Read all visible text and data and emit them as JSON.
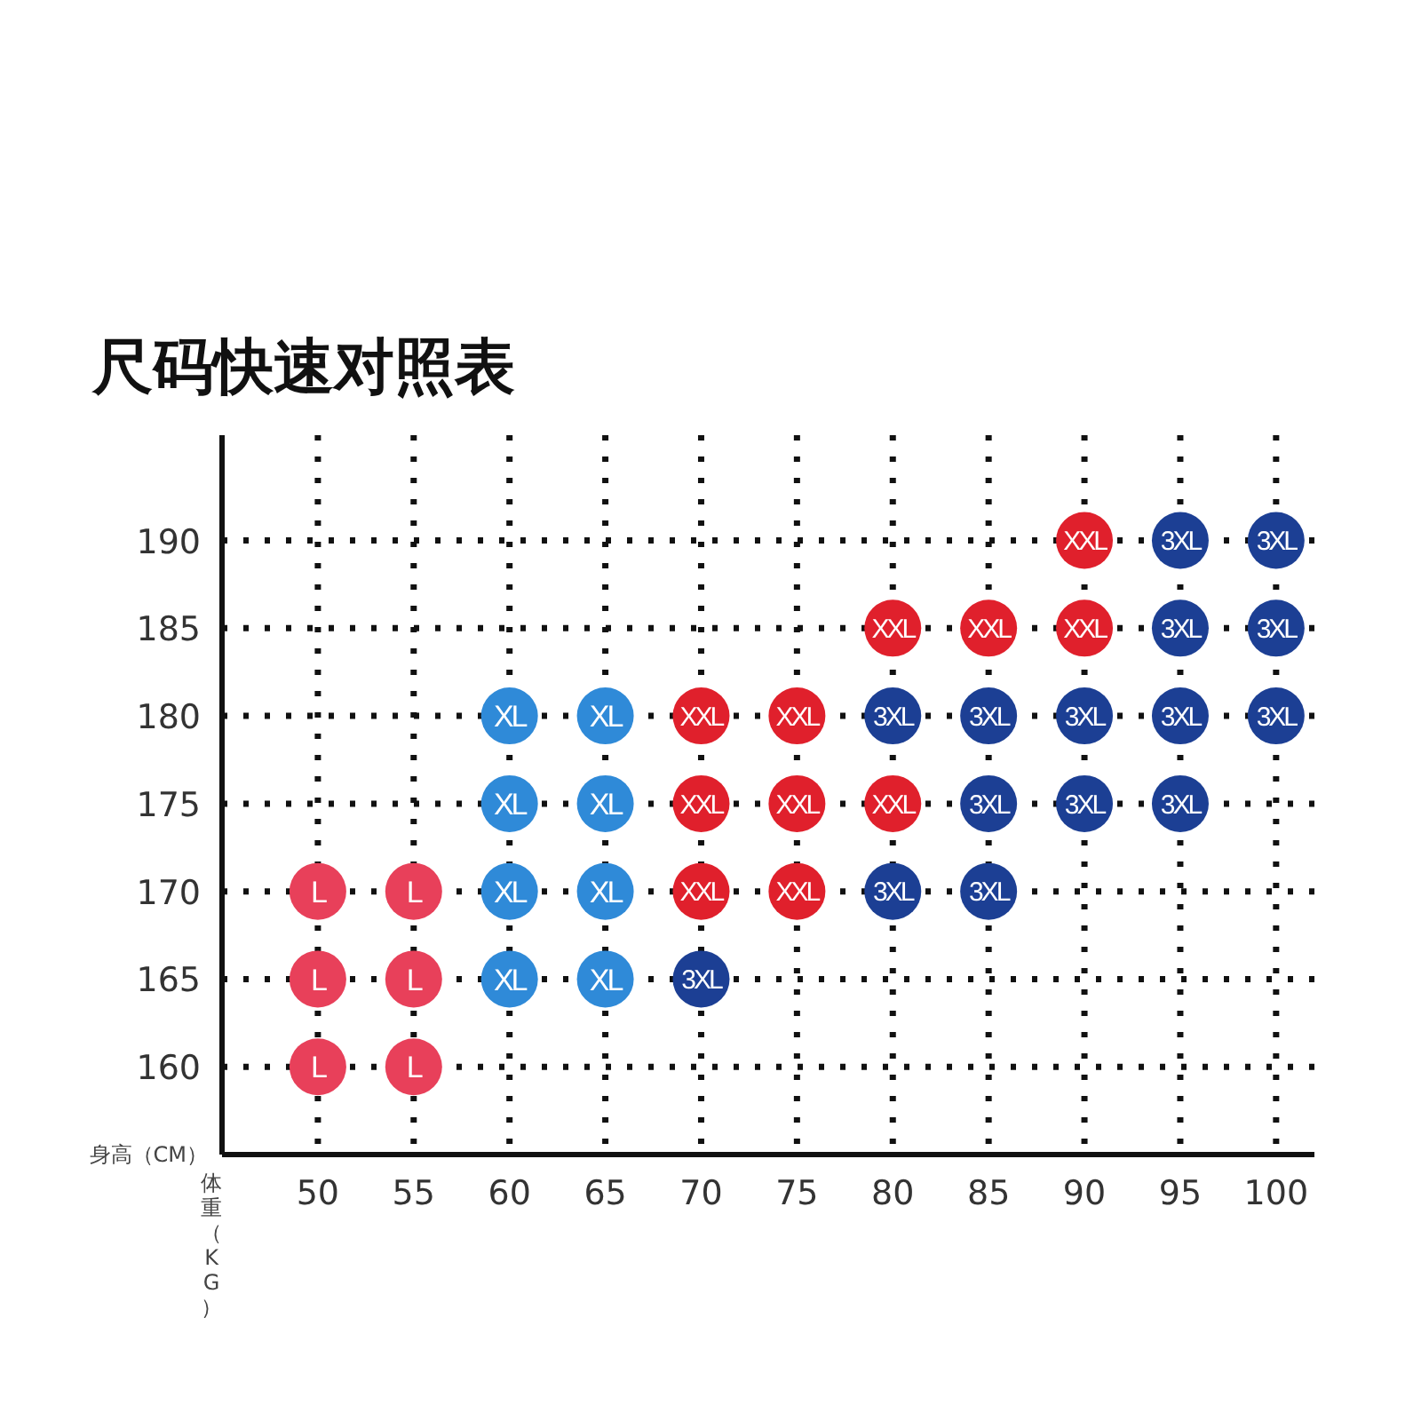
{
  "chart_data": {
    "type": "scatter",
    "title": "尺码快速对照表",
    "xlabel": "体重（KG）",
    "ylabel": "身高（CM）",
    "xlim": [
      45,
      102
    ],
    "ylim": [
      155,
      196
    ],
    "xticks": [
      50,
      55,
      60,
      65,
      70,
      75,
      80,
      85,
      90,
      95,
      100
    ],
    "yticks": [
      160,
      165,
      170,
      175,
      180,
      185,
      190
    ],
    "grid": true,
    "marker": "circle",
    "legend": false,
    "series": [
      {
        "name": "L",
        "color": "#e8405a",
        "x": [
          50,
          50,
          50,
          55,
          55,
          55
        ],
        "values": [
          160,
          165,
          170,
          160,
          165,
          170
        ]
      },
      {
        "name": "XL",
        "color": "#2f8ad8",
        "x": [
          60,
          60,
          60,
          60,
          65,
          65,
          65,
          65
        ],
        "values": [
          165,
          170,
          175,
          180,
          165,
          170,
          175,
          180
        ]
      },
      {
        "name": "XXL",
        "color": "#e0202c",
        "x": [
          70,
          70,
          70,
          75,
          75,
          75,
          80,
          80,
          85,
          90,
          90
        ],
        "values": [
          170,
          175,
          180,
          170,
          175,
          180,
          175,
          185,
          185,
          185,
          190
        ]
      },
      {
        "name": "3XL",
        "color": "#1c3f94",
        "x": [
          70,
          80,
          80,
          85,
          85,
          85,
          90,
          90,
          95,
          95,
          95,
          95,
          100,
          100,
          100
        ],
        "values": [
          165,
          170,
          180,
          170,
          175,
          180,
          175,
          180,
          175,
          180,
          185,
          190,
          180,
          185,
          190
        ]
      }
    ]
  }
}
